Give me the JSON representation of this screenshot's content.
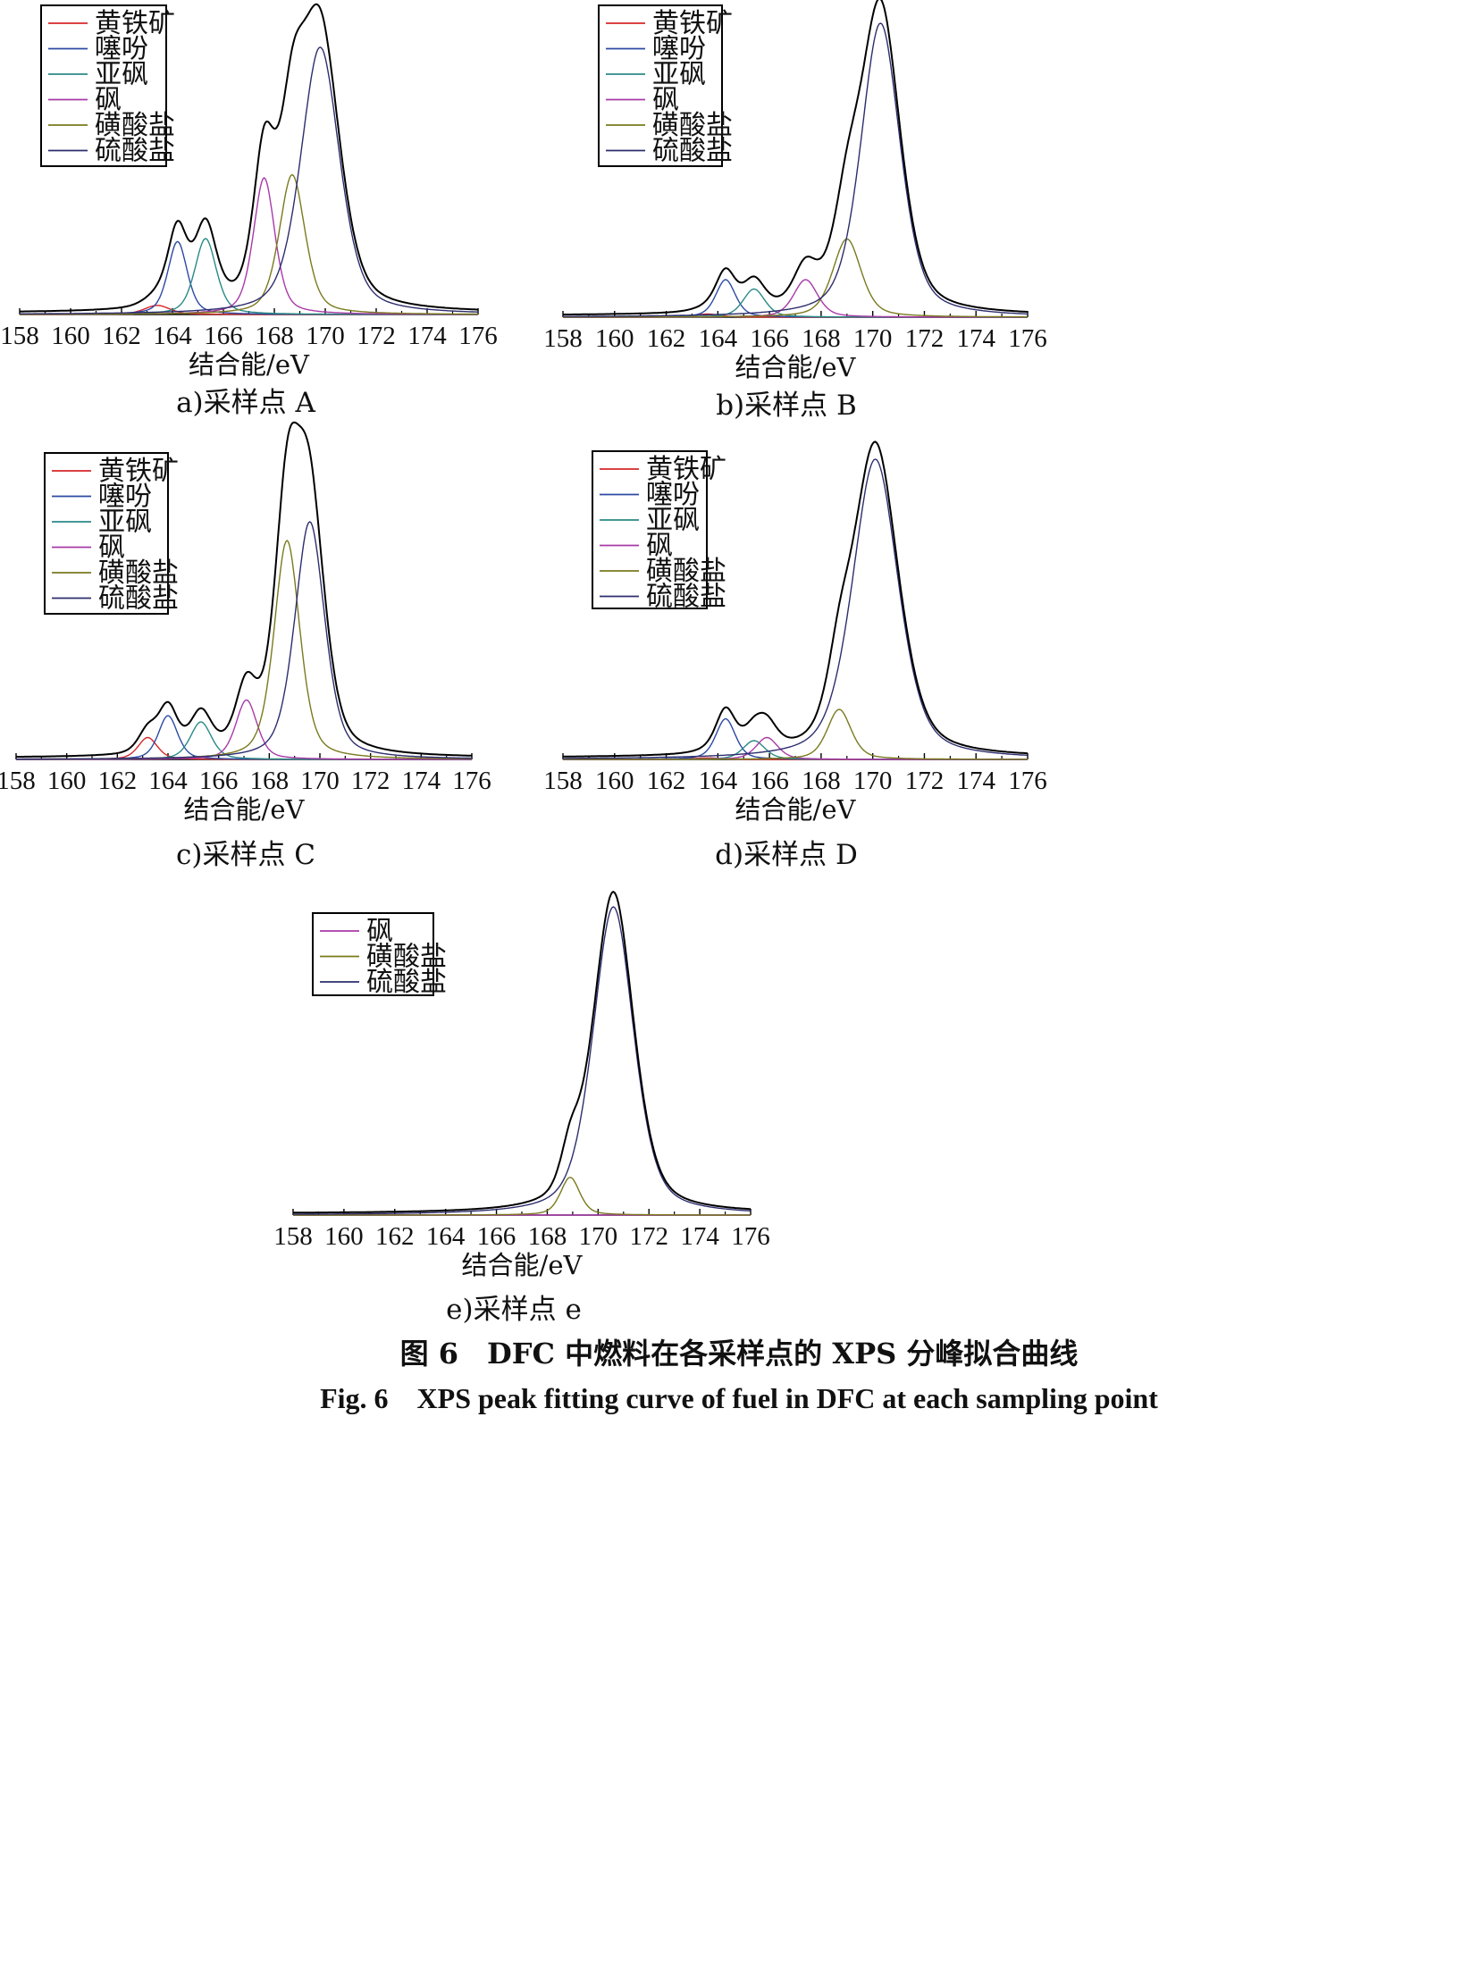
{
  "figure": {
    "title_cn": "图 6　DFC 中燃料在各采样点的 XPS 分峰拟合曲线",
    "title_en": "Fig. 6　XPS peak fitting curve of fuel in DFC at each sampling point"
  },
  "colors": {
    "黄铁矿": "#d62728",
    "噻吩": "#2b4aa3",
    "亚砜": "#2a8a86",
    "砜": "#a83aa8",
    "磺酸盐": "#7a7a1e",
    "硫酸盐": "#2d2d6e",
    "envelope": "#000000"
  },
  "chart_data": [
    {
      "id": "A",
      "type": "line",
      "caption": "a)采样点 A",
      "xlabel": "结合能/eV",
      "xlim": [
        158,
        176
      ],
      "xticks": [
        "158",
        "160",
        "162",
        "164",
        "166",
        "168",
        "170",
        "172",
        "174",
        "176"
      ],
      "legend": [
        "黄铁矿",
        "噻吩",
        "亚砜",
        "砜",
        "磺酸盐",
        "硫酸盐"
      ],
      "legend_position": "top-left",
      "series": [
        {
          "name": "黄铁矿",
          "center": 163.4,
          "height": 0.03,
          "width": 0.6
        },
        {
          "name": "噻吩",
          "center": 164.2,
          "height": 0.24,
          "width": 0.45
        },
        {
          "name": "亚砜",
          "center": 165.3,
          "height": 0.25,
          "width": 0.5
        },
        {
          "name": "砜",
          "center": 167.6,
          "height": 0.45,
          "width": 0.5
        },
        {
          "name": "磺酸盐",
          "center": 168.7,
          "height": 0.46,
          "width": 0.6
        },
        {
          "name": "硫酸盐",
          "center": 169.8,
          "height": 0.88,
          "width": 0.9
        }
      ],
      "envelope": true
    },
    {
      "id": "B",
      "type": "line",
      "caption": "b)采样点 B",
      "xlabel": "结合能/eV",
      "xlim": [
        158,
        176
      ],
      "xticks": [
        "158",
        "160",
        "162",
        "164",
        "166",
        "168",
        "170",
        "172",
        "174",
        "176"
      ],
      "legend": [
        "黄铁矿",
        "噻吩",
        "亚砜",
        "砜",
        "磺酸盐",
        "硫酸盐"
      ],
      "legend_position": "top-left",
      "series": [
        {
          "name": "黄铁矿",
          "center": 163.6,
          "height": 0.01,
          "width": 0.6
        },
        {
          "name": "噻吩",
          "center": 164.3,
          "height": 0.12,
          "width": 0.45
        },
        {
          "name": "亚砜",
          "center": 165.4,
          "height": 0.09,
          "width": 0.5
        },
        {
          "name": "砜",
          "center": 167.4,
          "height": 0.12,
          "width": 0.55
        },
        {
          "name": "磺酸盐",
          "center": 169.0,
          "height": 0.25,
          "width": 0.65
        },
        {
          "name": "硫酸盐",
          "center": 170.3,
          "height": 0.94,
          "width": 0.9
        }
      ],
      "envelope": true
    },
    {
      "id": "C",
      "type": "line",
      "caption": "c)采样点 C",
      "xlabel": "结合能/eV",
      "xlim": [
        158,
        176
      ],
      "xticks": [
        "158",
        "160",
        "162",
        "164",
        "166",
        "168",
        "170",
        "172",
        "174",
        "176"
      ],
      "legend": [
        "黄铁矿",
        "噻吩",
        "亚砜",
        "砜",
        "磺酸盐",
        "硫酸盐"
      ],
      "legend_position": "top-left",
      "series": [
        {
          "name": "黄铁矿",
          "center": 163.2,
          "height": 0.07,
          "width": 0.45
        },
        {
          "name": "噻吩",
          "center": 164.0,
          "height": 0.14,
          "width": 0.45
        },
        {
          "name": "亚砜",
          "center": 165.3,
          "height": 0.12,
          "width": 0.5
        },
        {
          "name": "砜",
          "center": 167.1,
          "height": 0.19,
          "width": 0.5
        },
        {
          "name": "磺酸盐",
          "center": 168.7,
          "height": 0.7,
          "width": 0.6
        },
        {
          "name": "硫酸盐",
          "center": 169.6,
          "height": 0.76,
          "width": 0.7
        }
      ],
      "envelope": true
    },
    {
      "id": "D",
      "type": "line",
      "caption": "d)采样点 D",
      "xlabel": "结合能/eV",
      "xlim": [
        158,
        176
      ],
      "xticks": [
        "158",
        "160",
        "162",
        "164",
        "166",
        "168",
        "170",
        "172",
        "174",
        "176"
      ],
      "legend": [
        "黄铁矿",
        "噻吩",
        "亚砜",
        "砜",
        "磺酸盐",
        "硫酸盐"
      ],
      "legend_position": "top-left",
      "series": [
        {
          "name": "黄铁矿",
          "center": 163.6,
          "height": 0.005,
          "width": 0.6
        },
        {
          "name": "噻吩",
          "center": 164.3,
          "height": 0.13,
          "width": 0.45
        },
        {
          "name": "亚砜",
          "center": 165.4,
          "height": 0.06,
          "width": 0.5
        },
        {
          "name": "砜",
          "center": 165.9,
          "height": 0.07,
          "width": 0.5
        },
        {
          "name": "磺酸盐",
          "center": 168.7,
          "height": 0.16,
          "width": 0.55
        },
        {
          "name": "硫酸盐",
          "center": 170.1,
          "height": 0.96,
          "width": 1.05
        }
      ],
      "envelope": true
    },
    {
      "id": "e",
      "type": "line",
      "caption": "e)采样点 e",
      "xlabel": "结合能/eV",
      "xlim": [
        158,
        176
      ],
      "xticks": [
        "158",
        "160",
        "162",
        "164",
        "166",
        "168",
        "170",
        "172",
        "174",
        "176"
      ],
      "legend": [
        "砜",
        "磺酸盐",
        "硫酸盐"
      ],
      "legend_position": "top-left",
      "series": [
        {
          "name": "砜",
          "center": 168.0,
          "height": 0.0,
          "width": 0.5
        },
        {
          "name": "磺酸盐",
          "center": 168.9,
          "height": 0.12,
          "width": 0.45
        },
        {
          "name": "硫酸盐",
          "center": 170.6,
          "height": 0.98,
          "width": 0.95
        }
      ],
      "envelope": true
    }
  ]
}
